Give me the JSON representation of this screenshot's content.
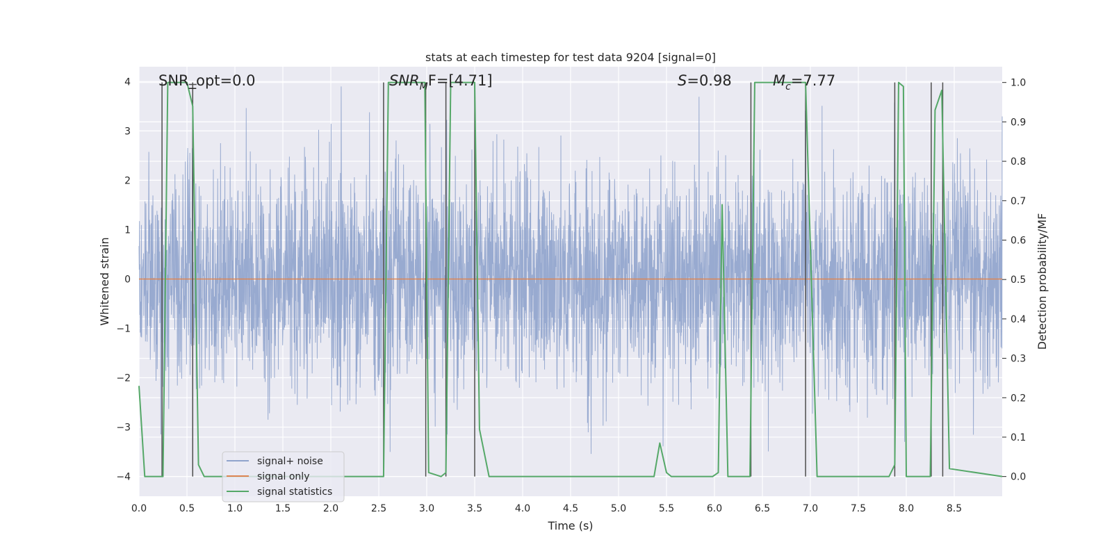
{
  "chart_data": {
    "type": "line",
    "title": "stats at each timestep for test data 9204 [signal=0]",
    "xlabel": "Time (s)",
    "ylabel_left": "Whitened strain",
    "ylabel_right": "Detection probability/MF",
    "xlim": [
      0.0,
      9.0
    ],
    "ylim_left": [
      -4.4,
      4.3
    ],
    "ylim_right": [
      -0.05,
      1.04
    ],
    "x_ticks": [
      "0.0",
      "0.5",
      "1.0",
      "1.5",
      "2.0",
      "2.5",
      "3.0",
      "3.5",
      "4.0",
      "4.5",
      "5.0",
      "5.5",
      "6.0",
      "6.5",
      "7.0",
      "7.5",
      "8.0",
      "8.5"
    ],
    "y_ticks_left": [
      "−4",
      "−3",
      "−2",
      "−1",
      "0",
      "1",
      "2",
      "3",
      "4"
    ],
    "y_ticks_right": [
      "0.0",
      "0.1",
      "0.2",
      "0.3",
      "0.4",
      "0.5",
      "0.6",
      "0.7",
      "0.8",
      "0.9",
      "1.0"
    ],
    "annotations": {
      "snr_opt": "SNR_opt=0.0",
      "snr_mf": "SNR",
      "snr_mf_sub": "M",
      "snr_mf_rest": "F=[4.71]",
      "s_text": "S",
      "s_rest": "=0.98",
      "mc_text": "M",
      "mc_sub": "c",
      "mc_rest": "=7.77"
    },
    "legend": {
      "placement": "lower-left",
      "entries": [
        "signal+ noise",
        "signal only",
        "signal statistics"
      ]
    },
    "colors": {
      "noise": "#8fa3cc",
      "signal": "#dd8452",
      "stats": "#55a868",
      "marker": "#4d4d4d",
      "plot_bg": "#eaeaf2",
      "grid": "#ffffff"
    },
    "series": [
      {
        "name": "signal statistics",
        "x": [
          0.0,
          0.06,
          0.25,
          0.3,
          0.33,
          0.5,
          0.56,
          0.62,
          0.68,
          2.55,
          2.6,
          2.98,
          3.02,
          3.15,
          3.2,
          3.25,
          3.5,
          3.55,
          3.65,
          5.37,
          5.43,
          5.5,
          5.55,
          5.98,
          6.04,
          6.08,
          6.14,
          6.37,
          6.42,
          6.95,
          7.07,
          7.82,
          7.88,
          7.92,
          7.97,
          8.0,
          8.1,
          8.25,
          8.3,
          8.37,
          8.45,
          9.0
        ],
        "y": [
          0.23,
          0.0,
          0.0,
          1.0,
          1.0,
          1.0,
          0.94,
          0.03,
          0.0,
          0.0,
          1.0,
          1.0,
          0.01,
          0.0,
          0.01,
          1.0,
          1.0,
          0.12,
          0.0,
          0.0,
          0.085,
          0.01,
          0.0,
          0.0,
          0.01,
          0.69,
          0.0,
          0.0,
          1.0,
          1.0,
          0.0,
          0.0,
          0.03,
          1.0,
          0.99,
          0.0,
          0.0,
          0.0,
          0.93,
          0.98,
          0.02,
          0.0
        ]
      },
      {
        "name": "signal only",
        "constant": 0.0
      }
    ],
    "marker_times": [
      0.24,
      0.56,
      2.55,
      2.99,
      3.2,
      3.5,
      6.38,
      6.95,
      7.88,
      8.26,
      8.38
    ]
  }
}
